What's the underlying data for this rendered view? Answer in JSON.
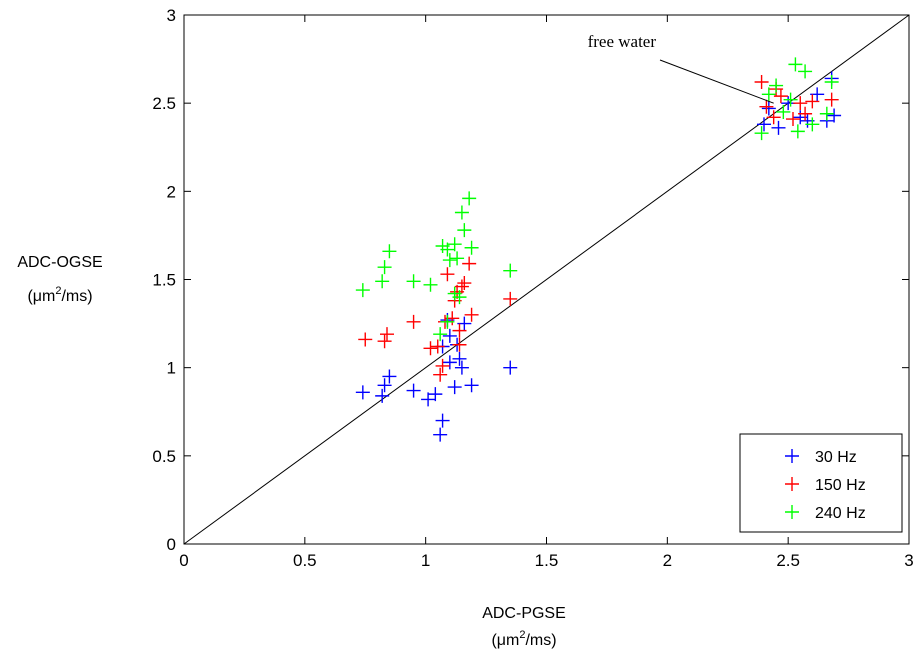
{
  "chart_data": {
    "type": "scatter",
    "title": "",
    "xlabel": "ADC-PGSE",
    "ylabel": "ADC-OGSE",
    "unit_label": {
      "prefix": "(μm",
      "sup": "2",
      "suffix": "/ms)"
    },
    "xlim": [
      0,
      3
    ],
    "ylim": [
      0,
      3
    ],
    "xticks": [
      "0",
      "0.5",
      "1",
      "1.5",
      "2",
      "2.5",
      "3"
    ],
    "yticks": [
      "0",
      "0.5",
      "1",
      "1.5",
      "2",
      "2.5",
      "3"
    ],
    "xtick_values": [
      0,
      0.5,
      1,
      1.5,
      2,
      2.5,
      3
    ],
    "ytick_values": [
      0,
      0.5,
      1,
      1.5,
      2,
      2.5,
      3
    ],
    "grid": false,
    "legend_position": "bottom-right",
    "reference_line": {
      "x": [
        0,
        3
      ],
      "y": [
        0,
        3
      ]
    },
    "annotations": [
      {
        "text": "free water",
        "target": [
          2.44,
          2.5
        ]
      }
    ],
    "series": [
      {
        "name": "30 Hz",
        "color": "#0000ff",
        "marker": "+",
        "points": [
          [
            0.74,
            0.86
          ],
          [
            0.82,
            0.84
          ],
          [
            0.83,
            0.9
          ],
          [
            0.85,
            0.95
          ],
          [
            0.95,
            0.87
          ],
          [
            1.01,
            0.82
          ],
          [
            1.04,
            0.85
          ],
          [
            1.06,
            0.62
          ],
          [
            1.07,
            0.7
          ],
          [
            1.09,
            1.27
          ],
          [
            1.1,
            1.18
          ],
          [
            1.1,
            1.03
          ],
          [
            1.12,
            0.89
          ],
          [
            1.13,
            1.13
          ],
          [
            1.14,
            1.05
          ],
          [
            1.15,
            1.0
          ],
          [
            1.16,
            1.25
          ],
          [
            1.19,
            0.9
          ],
          [
            1.35,
            1.0
          ],
          [
            1.07,
            1.12
          ],
          [
            2.4,
            2.38
          ],
          [
            2.42,
            2.47
          ],
          [
            2.46,
            2.36
          ],
          [
            2.5,
            2.5
          ],
          [
            2.55,
            2.42
          ],
          [
            2.58,
            2.4
          ],
          [
            2.62,
            2.55
          ],
          [
            2.66,
            2.4
          ],
          [
            2.69,
            2.43
          ],
          [
            2.68,
            2.64
          ]
        ]
      },
      {
        "name": "150 Hz",
        "color": "#ff0000",
        "marker": "+",
        "points": [
          [
            0.75,
            1.16
          ],
          [
            0.83,
            1.15
          ],
          [
            0.84,
            1.19
          ],
          [
            0.95,
            1.26
          ],
          [
            1.02,
            1.11
          ],
          [
            1.05,
            1.12
          ],
          [
            1.06,
            0.96
          ],
          [
            1.07,
            1.01
          ],
          [
            1.08,
            1.26
          ],
          [
            1.09,
            1.53
          ],
          [
            1.11,
            1.28
          ],
          [
            1.12,
            1.38
          ],
          [
            1.13,
            1.43
          ],
          [
            1.14,
            1.21
          ],
          [
            1.15,
            1.46
          ],
          [
            1.16,
            1.48
          ],
          [
            1.18,
            1.59
          ],
          [
            1.19,
            1.3
          ],
          [
            1.35,
            1.39
          ],
          [
            1.14,
            1.13
          ],
          [
            2.39,
            2.62
          ],
          [
            2.41,
            2.48
          ],
          [
            2.45,
            2.58
          ],
          [
            2.47,
            2.54
          ],
          [
            2.52,
            2.41
          ],
          [
            2.55,
            2.5
          ],
          [
            2.57,
            2.44
          ],
          [
            2.6,
            2.51
          ],
          [
            2.68,
            2.52
          ],
          [
            2.44,
            2.42
          ]
        ]
      },
      {
        "name": "240 Hz",
        "color": "#00ff00",
        "marker": "+",
        "points": [
          [
            0.74,
            1.44
          ],
          [
            0.82,
            1.49
          ],
          [
            0.83,
            1.57
          ],
          [
            0.85,
            1.66
          ],
          [
            0.95,
            1.49
          ],
          [
            1.02,
            1.47
          ],
          [
            1.06,
            1.19
          ],
          [
            1.07,
            1.69
          ],
          [
            1.09,
            1.67
          ],
          [
            1.1,
            1.61
          ],
          [
            1.12,
            1.7
          ],
          [
            1.13,
            1.62
          ],
          [
            1.14,
            1.4
          ],
          [
            1.15,
            1.88
          ],
          [
            1.16,
            1.78
          ],
          [
            1.18,
            1.96
          ],
          [
            1.19,
            1.68
          ],
          [
            1.35,
            1.55
          ],
          [
            1.09,
            1.26
          ],
          [
            1.12,
            1.42
          ],
          [
            2.39,
            2.33
          ],
          [
            2.42,
            2.55
          ],
          [
            2.45,
            2.6
          ],
          [
            2.48,
            2.45
          ],
          [
            2.51,
            2.52
          ],
          [
            2.53,
            2.72
          ],
          [
            2.54,
            2.34
          ],
          [
            2.57,
            2.68
          ],
          [
            2.6,
            2.38
          ],
          [
            2.66,
            2.44
          ],
          [
            2.68,
            2.62
          ]
        ]
      }
    ]
  }
}
